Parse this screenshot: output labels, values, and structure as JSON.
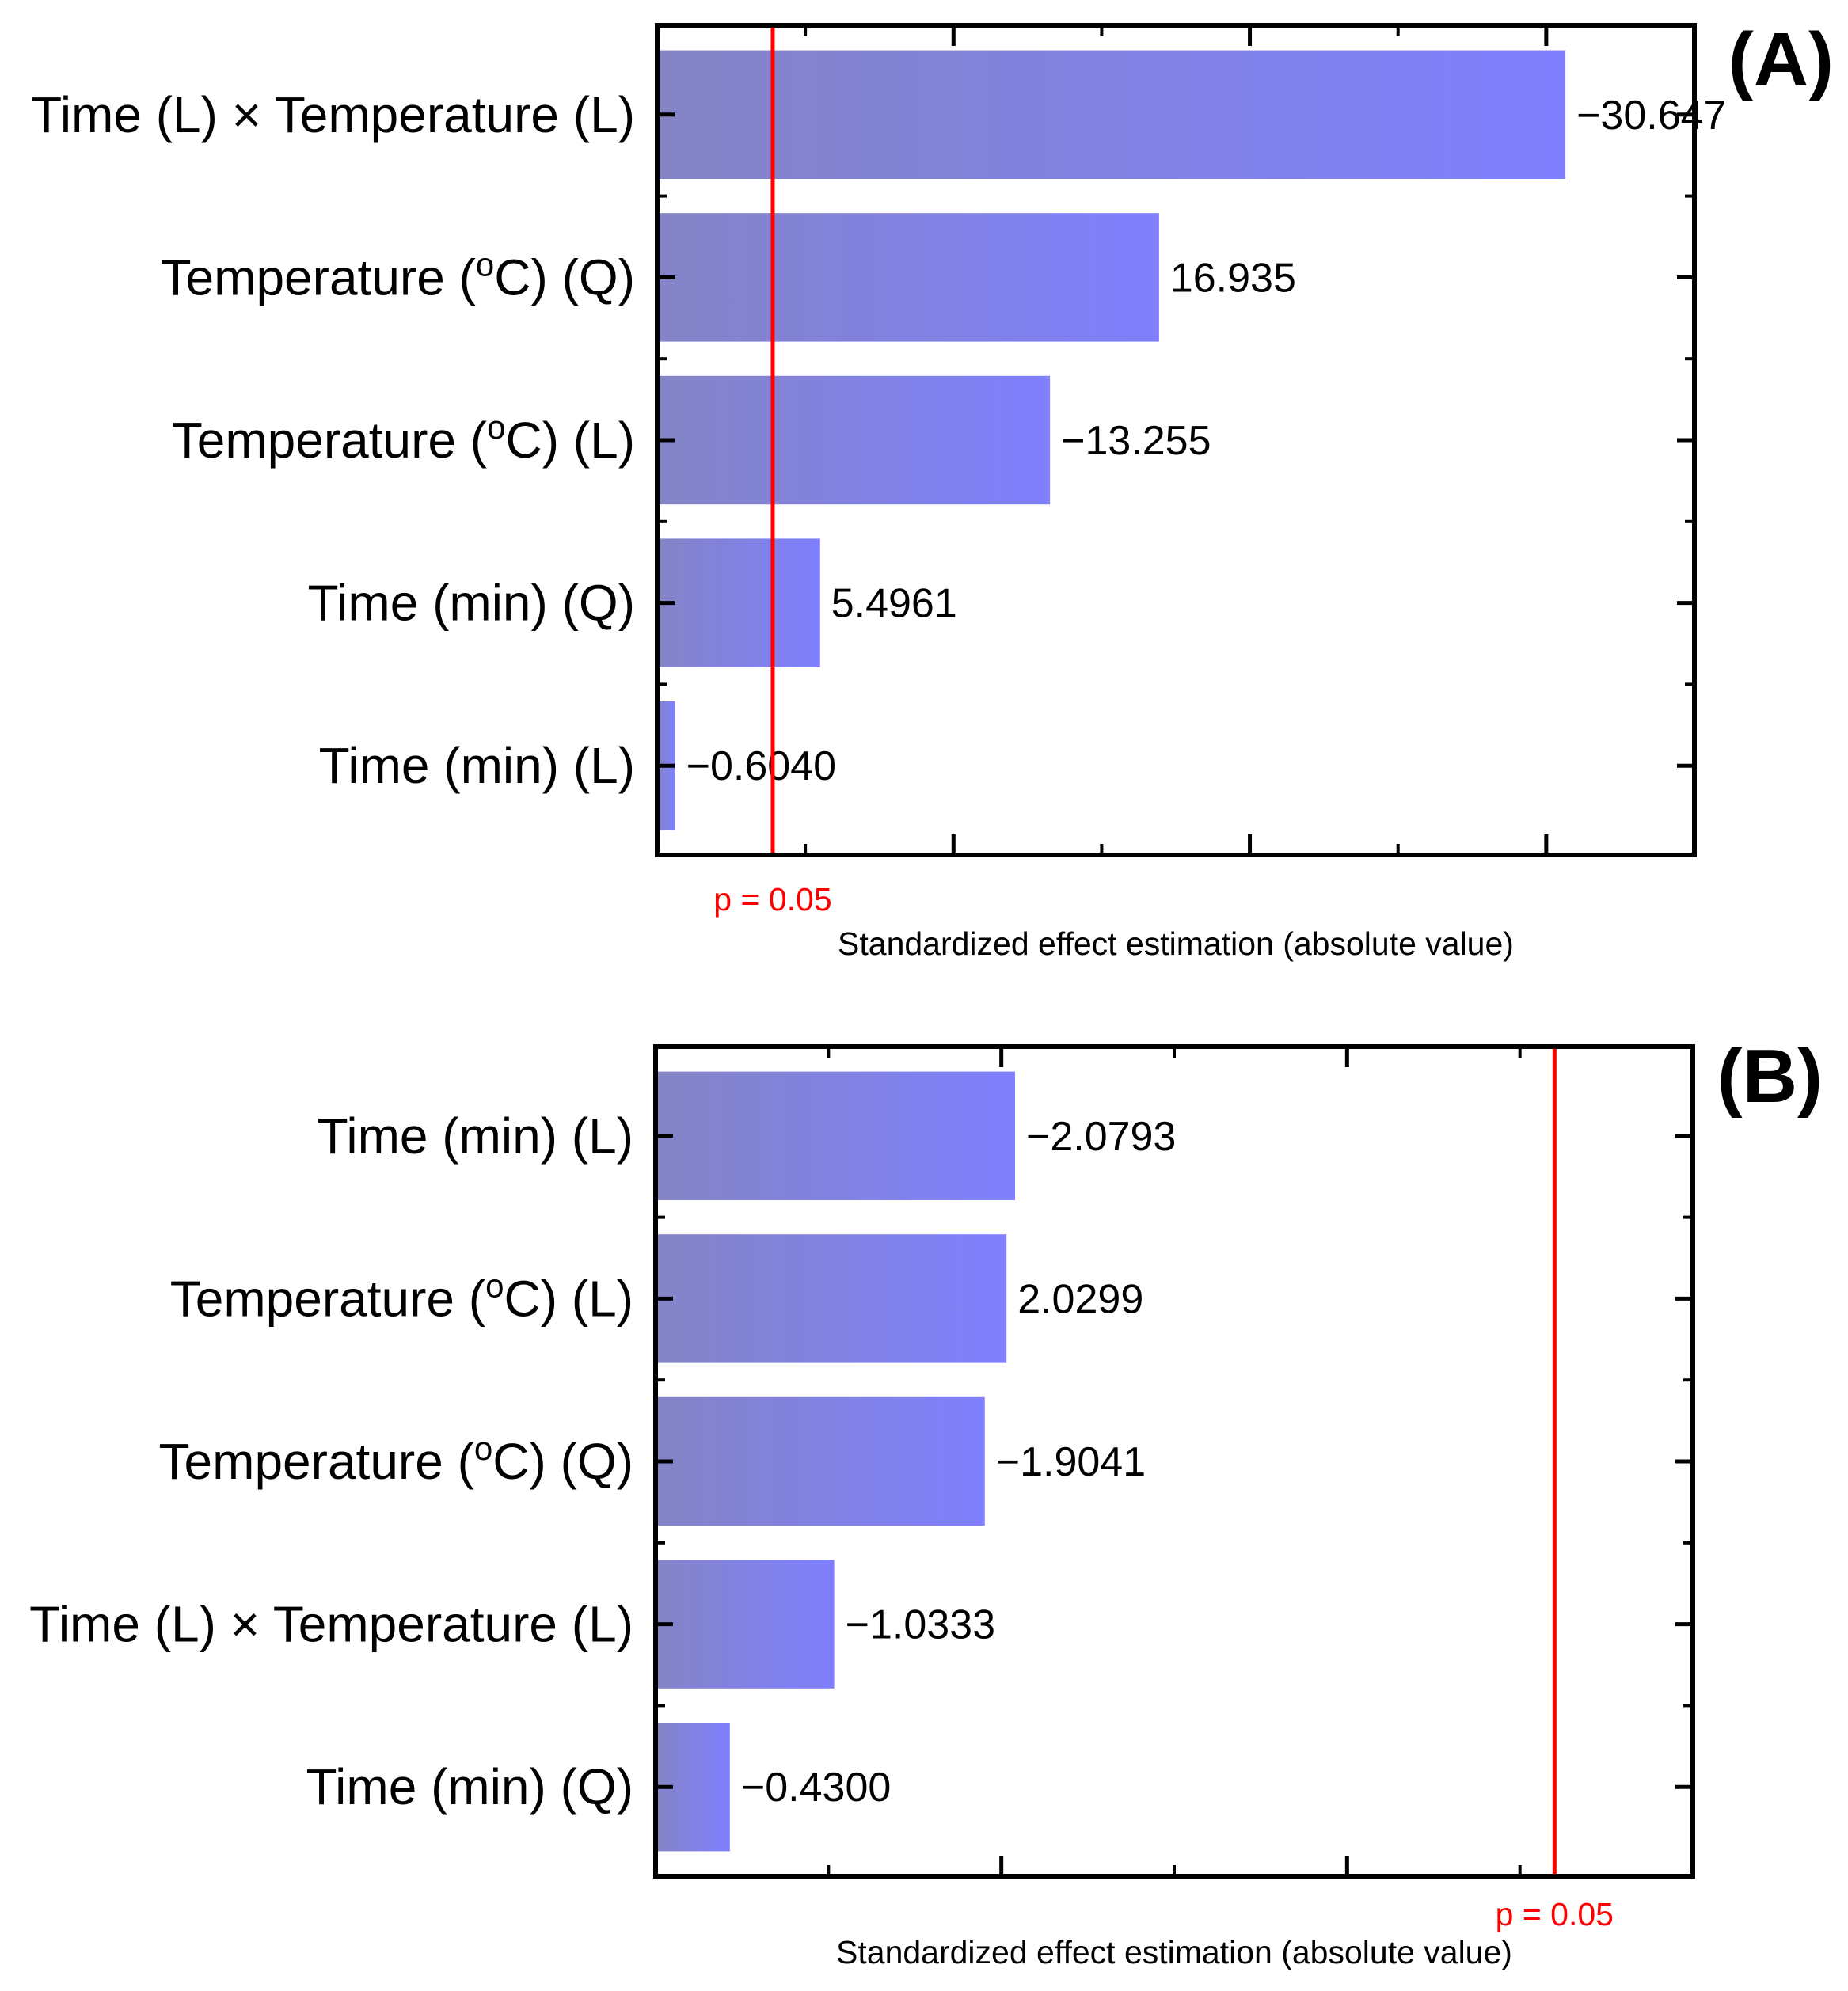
{
  "chart_data": [
    {
      "type": "bar",
      "orientation": "horizontal",
      "panel_label": "(A)",
      "title": "",
      "categories": [
        "Time (L) × Temperature (L)",
        "Temperature (°C) (Q)",
        "Temperature (°C) (L)",
        "Time (min) (Q)",
        "Time (min) (L)"
      ],
      "cat_parts": [
        {
          "pre": "Time (L) × Temperature (L)",
          "sup": "",
          "post": ""
        },
        {
          "pre": "Temperature (",
          "sup": "o",
          "post": "C) (Q)"
        },
        {
          "pre": "Temperature (",
          "sup": "o",
          "post": "C) (L)"
        },
        {
          "pre": "Time (min) (Q)",
          "sup": "",
          "post": ""
        },
        {
          "pre": "Time (min) (L)",
          "sup": "",
          "post": ""
        }
      ],
      "values": [
        30.647,
        16.935,
        13.255,
        5.4961,
        0.604
      ],
      "value_labels": [
        "−30.647",
        "16.935",
        "−13.255",
        "5.4961",
        "−0.6040"
      ],
      "xlabel": "Standardized effect estimation (absolute value)",
      "ylabel": "",
      "xlim": [
        0,
        35
      ],
      "major_ticks": [
        0,
        10,
        20,
        30
      ],
      "minor_ticks": [
        5,
        15,
        25
      ],
      "threshold": {
        "value": 3.9,
        "label": "p = 0.05",
        "label_position": "below-axis",
        "color": "#ff0000"
      },
      "bar_gradient": [
        "#8484c6",
        "#8080ff"
      ],
      "grid": false
    },
    {
      "type": "bar",
      "orientation": "horizontal",
      "panel_label": "(B)",
      "title": "",
      "categories": [
        "Time (min) (L)",
        "Temperature (°C) (L)",
        "Temperature (°C) (Q)",
        "Time (L) × Temperature (L)",
        "Time (min) (Q)"
      ],
      "cat_parts": [
        {
          "pre": "Time (min) (L)",
          "sup": "",
          "post": ""
        },
        {
          "pre": "Temperature (",
          "sup": "o",
          "post": "C) (L)"
        },
        {
          "pre": "Temperature (",
          "sup": "o",
          "post": "C) (Q)"
        },
        {
          "pre": "Time (L) × Temperature (L)",
          "sup": "",
          "post": ""
        },
        {
          "pre": "Time (min) (Q)",
          "sup": "",
          "post": ""
        }
      ],
      "values": [
        2.0793,
        2.0299,
        1.9041,
        1.0333,
        0.43
      ],
      "value_labels": [
        "−2.0793",
        "2.0299",
        "−1.9041",
        "−1.0333",
        "−0.4300"
      ],
      "xlabel": "Standardized effect estimation (absolute value)",
      "ylabel": "",
      "xlim": [
        0,
        6
      ],
      "major_ticks": [
        0,
        2,
        4
      ],
      "minor_ticks": [
        1,
        3,
        5
      ],
      "threshold": {
        "value": 5.2,
        "label": "p = 0.05",
        "label_position": "below-axis",
        "color": "#ff0000"
      },
      "bar_gradient": [
        "#8484c6",
        "#8080ff"
      ],
      "grid": false
    }
  ]
}
